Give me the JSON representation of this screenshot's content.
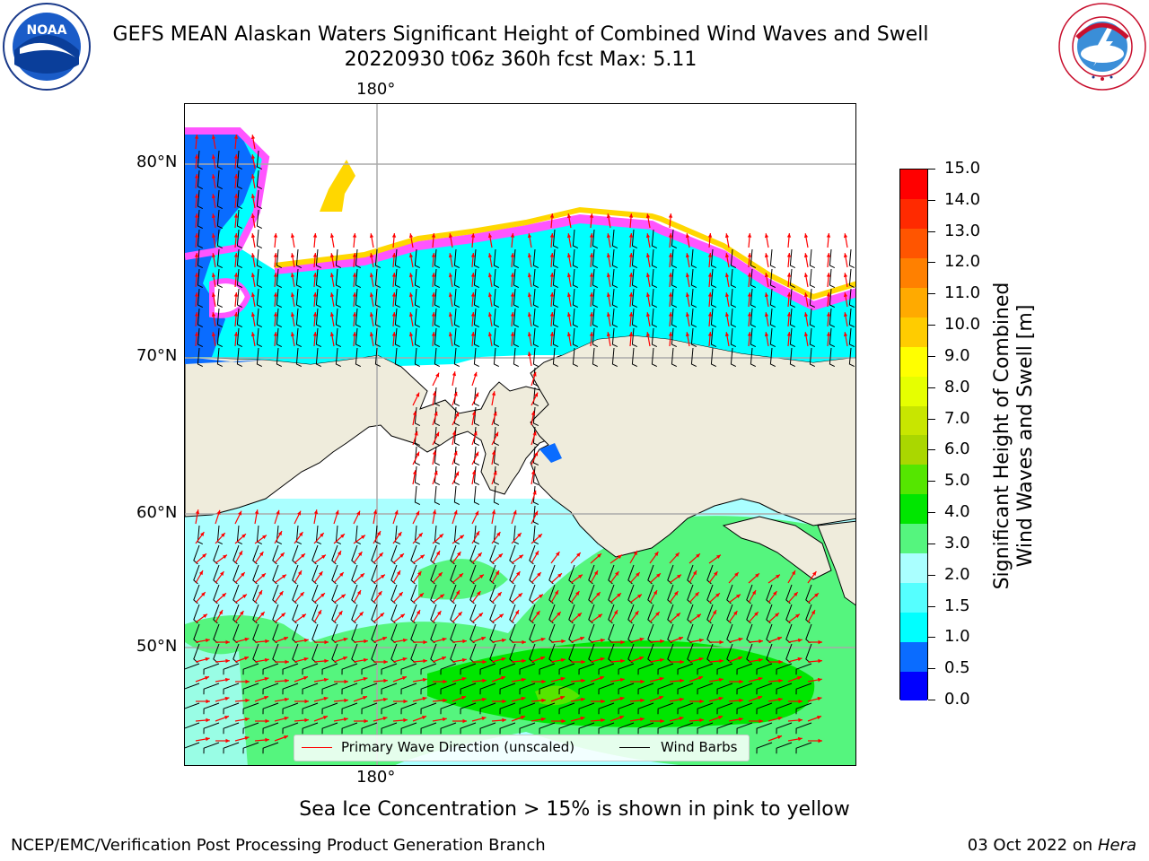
{
  "title_line1": "GEFS MEAN Alaskan Waters Significant Height of Combined Wind Waves and Swell",
  "title_line2": "20220930 t06z 360h fcst   Max: 5.11",
  "logos": {
    "left": {
      "icon": "noaa-logo",
      "text": "NOAA"
    },
    "right": {
      "icon": "nws-logo",
      "text": "NATIONAL WEATHER SERVICE"
    }
  },
  "grid_labels": {
    "top_lon": "180°",
    "bottom_lon": "180°",
    "lats": [
      "80°N",
      "70°N",
      "60°N",
      "50°N"
    ]
  },
  "legend": {
    "wave_label": "Primary Wave Direction (unscaled)",
    "wave_color": "#ff0000",
    "wind_label": "Wind Barbs",
    "wind_color": "#000000"
  },
  "colorbar": {
    "label": "Significant Height of Combined Wind Waves and Swell [m]",
    "label_line1": "Significant Height of Combined",
    "label_line2": "Wind Waves and Swell [m]",
    "ticks": [
      "0.0",
      "0.5",
      "1.0",
      "1.5",
      "2.0",
      "3.0",
      "4.0",
      "5.0",
      "6.0",
      "7.0",
      "8.0",
      "9.0",
      "10.0",
      "11.0",
      "12.0",
      "13.0",
      "14.0",
      "15.0"
    ],
    "colors": [
      "#0000ff",
      "#0a6cff",
      "#00ffff",
      "#55ffff",
      "#aaffff",
      "#55f57e",
      "#00e600",
      "#55e600",
      "#aad700",
      "#c8e600",
      "#e6ff00",
      "#ffff00",
      "#ffcc00",
      "#ffaa00",
      "#ff8000",
      "#ff5500",
      "#ff2a00",
      "#ff0000"
    ]
  },
  "colors": {
    "land": "#efecdc",
    "ice_pink": "#ff55ff",
    "ice_yellow": "#ffd700",
    "ocean_border": "#000000",
    "gridline": "#aaaaaa"
  },
  "subcaption": "Sea Ice Concentration > 15% is shown in pink to yellow",
  "footer_left": "NCEP/EMC/Verification Post Processing Product Generation Branch",
  "footer_date": "03 Oct 2022 on ",
  "footer_machine": "Hera"
}
